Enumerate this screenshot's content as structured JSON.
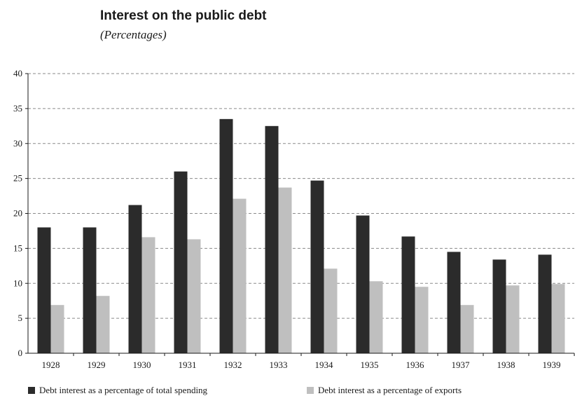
{
  "chart_data": {
    "type": "bar",
    "title": "Interest on the public debt",
    "subtitle": "(Percentages)",
    "categories": [
      "1928",
      "1929",
      "1930",
      "1931",
      "1932",
      "1933",
      "1934",
      "1935",
      "1936",
      "1937",
      "1938",
      "1939"
    ],
    "series": [
      {
        "name": "Debt interest as a percentage of total spending",
        "color": "#2b2b2b",
        "values": [
          18.0,
          18.0,
          21.2,
          26.0,
          33.5,
          32.5,
          24.7,
          19.7,
          16.7,
          14.5,
          13.4,
          14.1
        ]
      },
      {
        "name": "Debt interest as a percentage of exports",
        "color": "#bfbfbf",
        "values": [
          6.9,
          8.2,
          16.6,
          16.3,
          22.1,
          23.7,
          12.1,
          10.3,
          9.5,
          6.9,
          9.7,
          9.9
        ]
      }
    ],
    "yticks": [
      0,
      5,
      10,
      15,
      20,
      25,
      30,
      35,
      40
    ],
    "ylim": [
      0,
      40
    ],
    "grid": true,
    "legend_position": "bottom"
  }
}
